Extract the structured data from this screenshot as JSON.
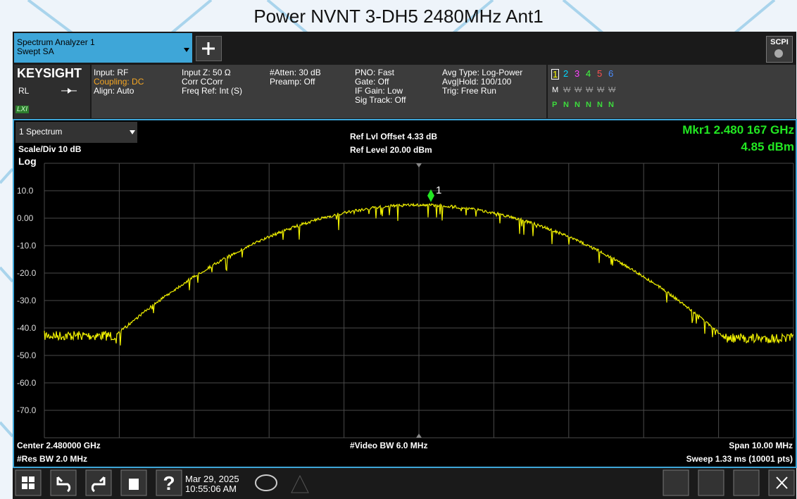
{
  "title": "Power NVNT 3-DH5 2480MHz Ant1",
  "tab": {
    "name": "Spectrum Analyzer 1",
    "mode": "Swept SA"
  },
  "scpi": "SCPI",
  "info": {
    "brand": "KEYSIGHT",
    "rl": "RL",
    "lxi": "LXI",
    "columns": [
      [
        "Input: RF",
        "Coupling: DC",
        "Align: Auto"
      ],
      [
        "Input Z: 50 Ω",
        "Corr CCorr",
        "Freq Ref: Int (S)"
      ],
      [
        "#Atten: 30 dB",
        "Preamp: Off"
      ],
      [
        "PNO: Fast",
        "Gate: Off",
        "IF Gain: Low",
        "Sig Track: Off"
      ],
      [
        "Avg Type: Log-Power",
        "Avg|Hold: 100/100",
        "Trig: Free Run"
      ]
    ]
  },
  "traces": {
    "numbers": [
      "1",
      "2",
      "3",
      "4",
      "5",
      "6"
    ],
    "modes": [
      "M",
      "W",
      "W",
      "W",
      "W",
      "W"
    ],
    "states": [
      "P",
      "N",
      "N",
      "N",
      "N",
      "N"
    ]
  },
  "plot": {
    "window": "1 Spectrum",
    "scale": "Scale/Div 10 dB",
    "log": "Log",
    "ref_offset": "Ref Lvl Offset 4.33 dB",
    "ref_level": "Ref Level 20.00 dBm",
    "marker_readout": [
      "Mkr1  2.480 167 GHz",
      "4.85 dBm"
    ],
    "marker_label": "1",
    "y_tick_labels": [
      "10.0",
      "0.00",
      "-10.0",
      "-20.0",
      "-30.0",
      "-40.0",
      "-50.0",
      "-60.0",
      "-70.0"
    ],
    "center": "Center 2.480000 GHz",
    "res_bw": "#Res BW 2.0 MHz",
    "video_bw": "#Video BW 6.0 MHz",
    "span": "Span 10.00 MHz",
    "sweep": "Sweep 1.33 ms (10001 pts)"
  },
  "taskbar": {
    "date": "Mar 29, 2025",
    "time": "10:55:06 AM"
  }
}
